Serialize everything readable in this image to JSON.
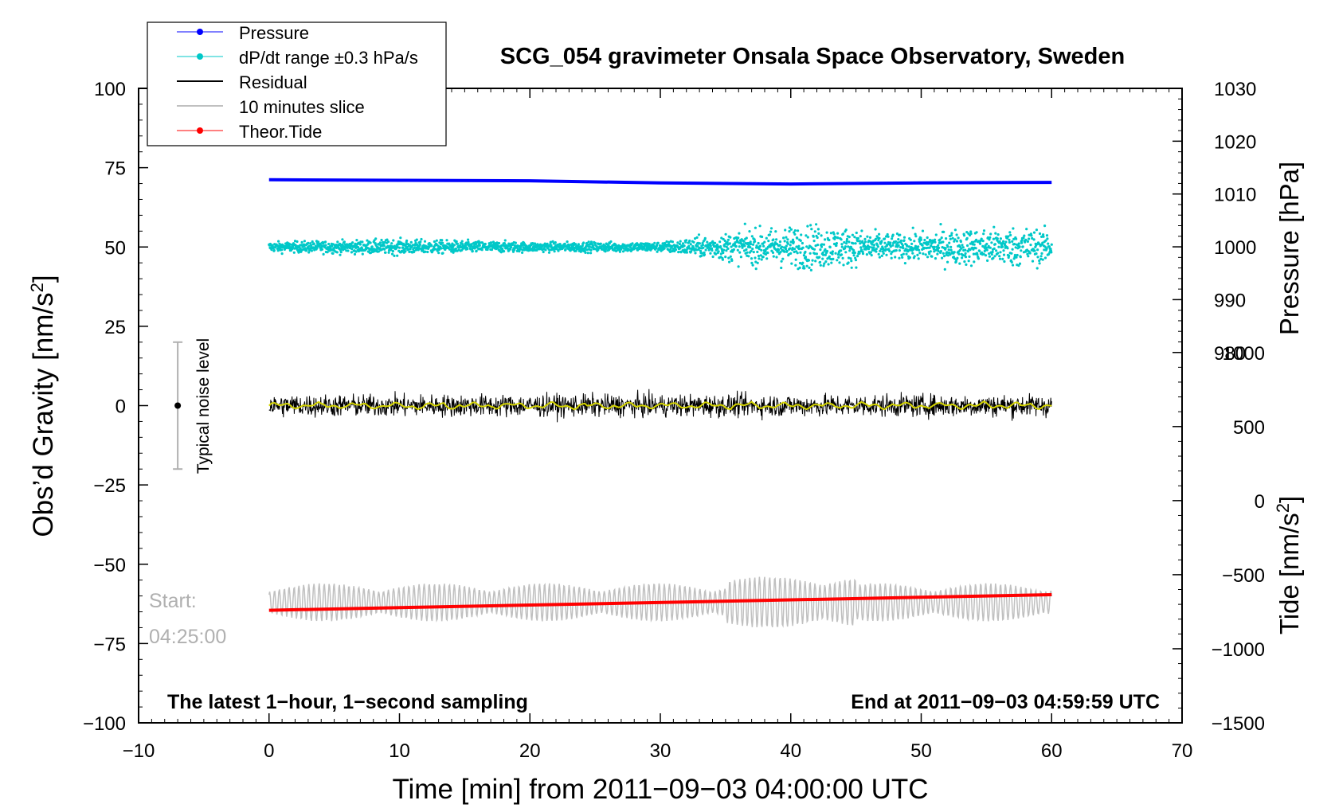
{
  "chart_data": {
    "type": "line",
    "title": "SCG_054 gravimeter Onsala Space Observatory, Sweden",
    "xlabel": "Time [min] from 2011−09−03 04:00:00 UTC",
    "ylabel_left": "Obs’d Gravity [nm/s²]",
    "ylabel_right_top": "Pressure [hPa]",
    "ylabel_right_bottom": "Tide [nm/s²]",
    "xlim": [
      -10,
      70
    ],
    "ylim_left": [
      -100,
      100
    ],
    "x_ticks": [
      -10,
      0,
      10,
      20,
      30,
      40,
      50,
      60,
      70
    ],
    "x_tick_labels": [
      "−10",
      "0",
      "10",
      "20",
      "30",
      "40",
      "50",
      "60",
      "70"
    ],
    "y_ticks_left": [
      100,
      75,
      50,
      25,
      0,
      -25,
      -50,
      -75,
      -100
    ],
    "y_tick_labels_left": [
      "100",
      "75",
      "50",
      "25",
      "0",
      "−25",
      "−50",
      "−75",
      "−100"
    ],
    "pressure_axis": {
      "ticks": [
        1030,
        1020,
        1010,
        1000,
        990,
        980
      ],
      "tick_labels": [
        "1030",
        "1020",
        "1010",
        "1000",
        "990",
        "980"
      ],
      "range": [
        980,
        1030
      ]
    },
    "tide_axis": {
      "ticks": [
        1000,
        500,
        0,
        -500,
        -1000,
        -1500
      ],
      "tick_labels": [
        "1000",
        "500",
        "0",
        "−500",
        "−1000",
        "−1500"
      ],
      "range": [
        -1500,
        1000
      ]
    },
    "legend": {
      "placement": "top-left",
      "entries": [
        {
          "label": "Pressure",
          "color": "#0000ff",
          "marker": true
        },
        {
          "label": "dP/dt range ±0.3 hPa/s",
          "color": "#00c8c8",
          "marker": true
        },
        {
          "label": "Residual",
          "color": "#000000",
          "marker": false
        },
        {
          "label": "10 minutes slice",
          "color": "#c0c0c0",
          "marker": false
        },
        {
          "label": "Theor.Tide",
          "color": "#ff0000",
          "marker": true
        }
      ]
    },
    "series": [
      {
        "name": "Pressure",
        "color": "#0000ff",
        "axis": "pressure",
        "x": [
          0,
          10,
          20,
          30,
          40,
          50,
          60
        ],
        "values": [
          1012.7,
          1012.6,
          1012.5,
          1012.1,
          1011.9,
          1012.1,
          1012.2
        ]
      },
      {
        "name": "dP/dt range ±0.3 hPa/s",
        "color": "#00c8c8",
        "center": 50,
        "spread_by_minute": [
          [
            0,
            2
          ],
          [
            10,
            3
          ],
          [
            20,
            2
          ],
          [
            30,
            2
          ],
          [
            33,
            4
          ],
          [
            37,
            7
          ],
          [
            42,
            9
          ],
          [
            48,
            5
          ],
          [
            52,
            7
          ],
          [
            58,
            8
          ],
          [
            60,
            6
          ]
        ]
      },
      {
        "name": "Residual",
        "color": "#000000",
        "center": 0,
        "amplitude": 5
      },
      {
        "name": "10 minutes slice",
        "color": "#c0c0c0",
        "center": -62,
        "amplitude": 6,
        "start_label_lines": [
          "Start:",
          "04:25:00"
        ]
      },
      {
        "name": "Theor.Tide",
        "color": "#ff0000",
        "axis": "tide",
        "x": [
          0,
          60
        ],
        "values": [
          -740,
          -635
        ]
      }
    ],
    "smoothed_residual_color": "#d4d400",
    "noise_indicator": {
      "label": "Typical noise level",
      "x": -7,
      "y_center": 0,
      "y_range": [
        -20,
        20
      ]
    },
    "annotations": {
      "bottom_left": "The latest 1−hour, 1−second sampling",
      "bottom_right": "End at 2011−09−03 04:59:59 UTC"
    },
    "grid": false
  }
}
